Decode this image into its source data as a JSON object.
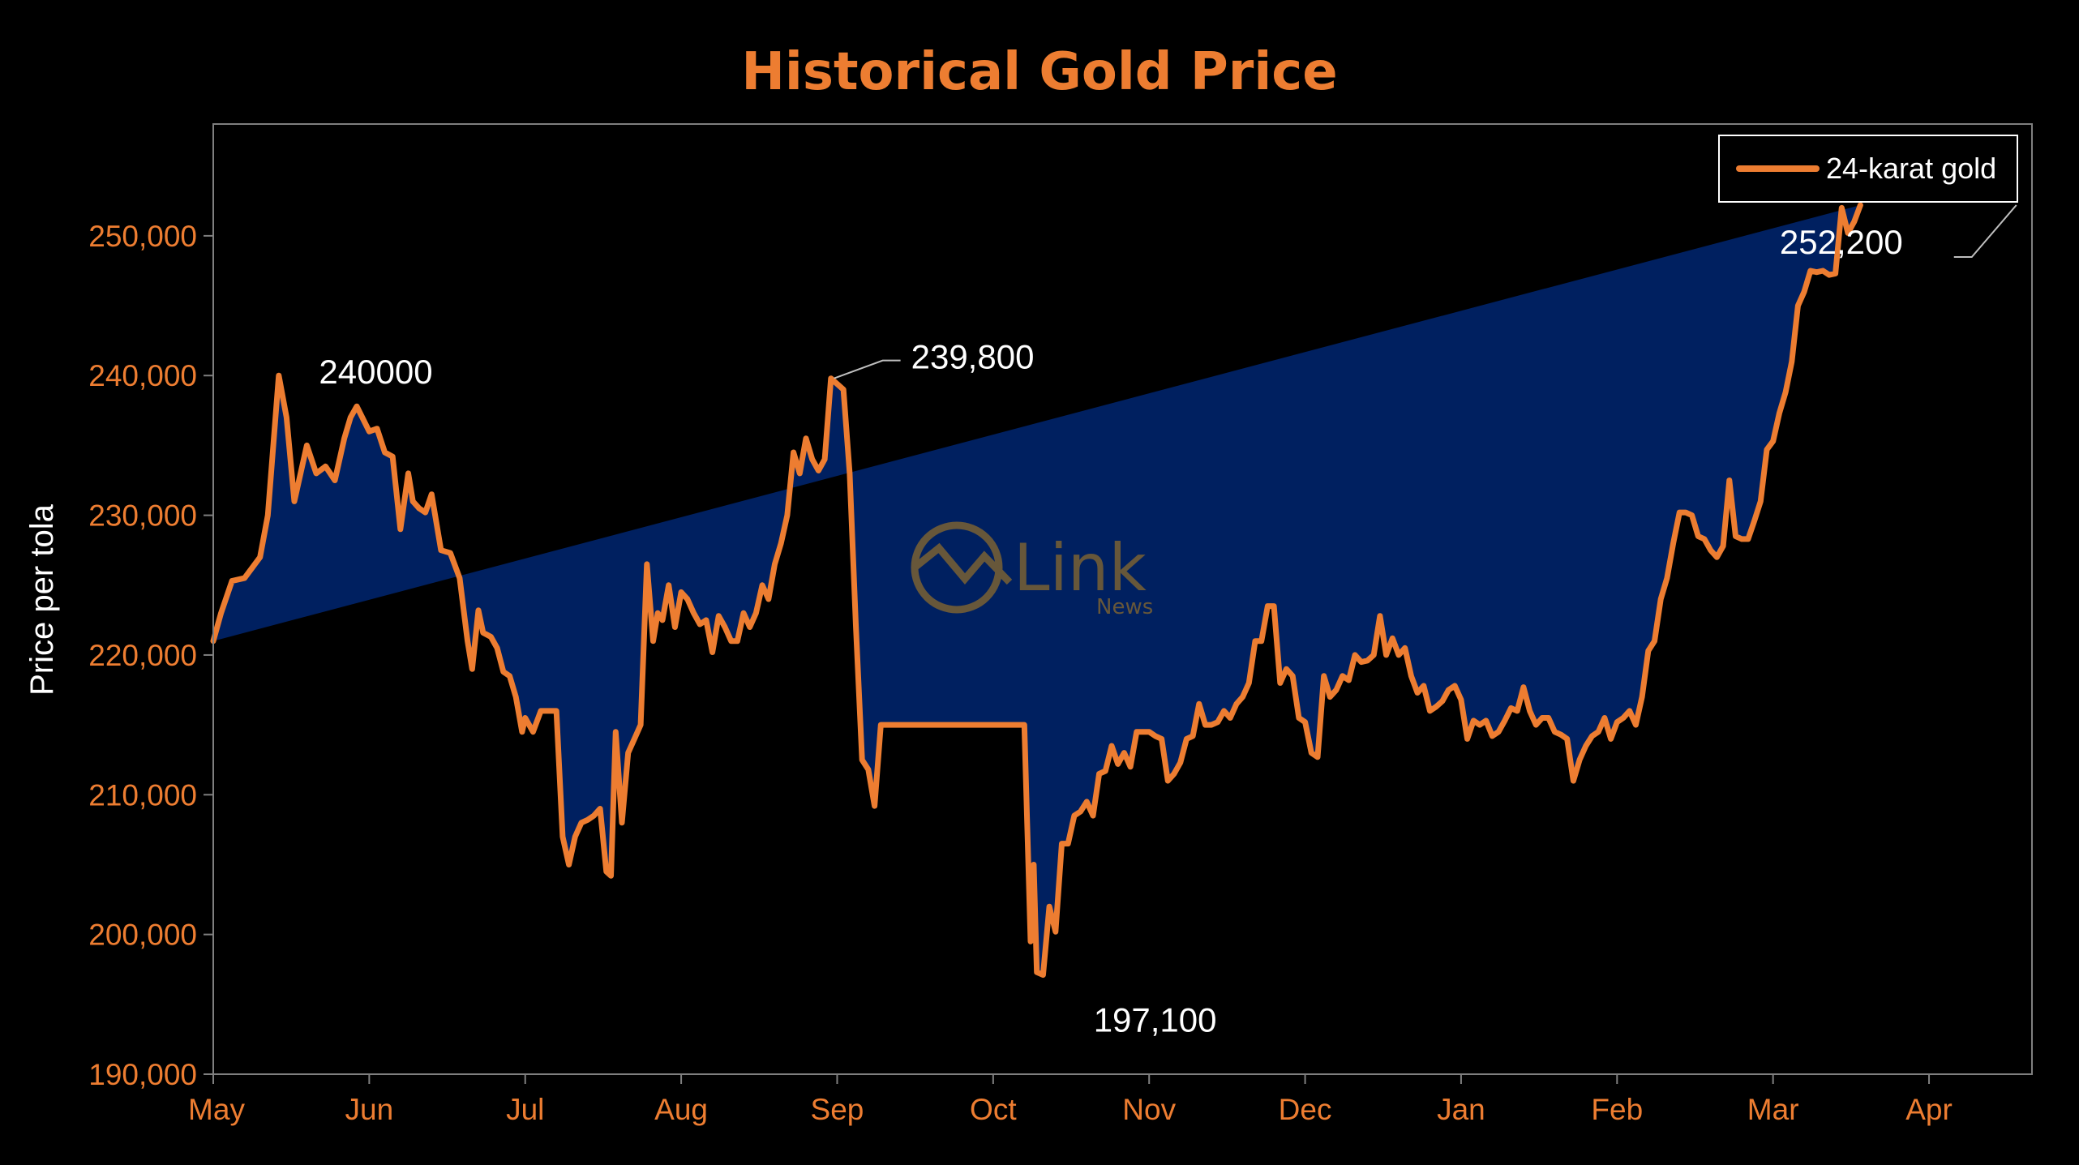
{
  "chart_data": {
    "type": "area",
    "title": "Historical Gold Price",
    "xlabel": "",
    "ylabel": "Price per tola",
    "ylim": [
      190000,
      258000
    ],
    "yticks": [
      "190,000",
      "200,000",
      "210,000",
      "220,000",
      "230,000",
      "240,000",
      "250,000"
    ],
    "ytick_values": [
      190000,
      200000,
      210000,
      220000,
      230000,
      240000,
      250000
    ],
    "months": [
      "May",
      "Jun",
      "Jul",
      "Aug",
      "Sep",
      "Oct",
      "Nov",
      "Dec",
      "Jan",
      "Feb",
      "Mar",
      "Apr"
    ],
    "legend_position": "top-right",
    "grid": false,
    "series": [
      {
        "name": "24-karat gold",
        "line_color": "#ED7D31",
        "fill_color": "#002060",
        "month_index": [
          0,
          0.05,
          0.12,
          0.2,
          0.3,
          0.35,
          0.42,
          0.47,
          0.52,
          0.56,
          0.6,
          0.66,
          0.72,
          0.78,
          0.84,
          0.88,
          0.92,
          1.0,
          1.05,
          1.1,
          1.15,
          1.2,
          1.25,
          1.28,
          1.32,
          1.36,
          1.4,
          1.46,
          1.52,
          1.58,
          1.63,
          1.66,
          1.7,
          1.73,
          1.78,
          1.82,
          1.86,
          1.9,
          1.94,
          1.98,
          2.0,
          2.05,
          2.1,
          2.15,
          2.2,
          2.24,
          2.28,
          2.32,
          2.36,
          2.4,
          2.44,
          2.48,
          2.52,
          2.55,
          2.58,
          2.62,
          2.66,
          2.7,
          2.74,
          2.78,
          2.82,
          2.85,
          2.88,
          2.92,
          2.96,
          3.0,
          3.04,
          3.08,
          3.12,
          3.16,
          3.2,
          3.24,
          3.28,
          3.32,
          3.36,
          3.4,
          3.44,
          3.48,
          3.52,
          3.56,
          3.6,
          3.64,
          3.68,
          3.72,
          3.76,
          3.8,
          3.84,
          3.88,
          3.92,
          3.96,
          4.0,
          4.04,
          4.08,
          4.12,
          4.16,
          4.2,
          4.24,
          4.28,
          4.32,
          4.36,
          4.42,
          4.48,
          5.0,
          5.2,
          5.24,
          5.26,
          5.28,
          5.32,
          5.36,
          5.4,
          5.44,
          5.48,
          5.52,
          5.56,
          5.6,
          5.64,
          5.68,
          5.72,
          5.76,
          5.8,
          5.84,
          5.88,
          5.92,
          5.96,
          6.0,
          6.04,
          6.08,
          6.12,
          6.16,
          6.2,
          6.24,
          6.28,
          6.32,
          6.36,
          6.4,
          6.44,
          6.48,
          6.52,
          6.56,
          6.6,
          6.64,
          6.68,
          6.72,
          6.76,
          6.8,
          6.84,
          6.88,
          6.92,
          6.96,
          7.0,
          7.04,
          7.08,
          7.12,
          7.16,
          7.2,
          7.24,
          7.28,
          7.32,
          7.36,
          7.4,
          7.44,
          7.48,
          7.52,
          7.56,
          7.6,
          7.64,
          7.68,
          7.72,
          7.76,
          7.8,
          7.84,
          7.88,
          7.92,
          7.96,
          8.0,
          8.04,
          8.08,
          8.12,
          8.16,
          8.2,
          8.24,
          8.28,
          8.32,
          8.36,
          8.4,
          8.44,
          8.48,
          8.52,
          8.56,
          8.6,
          8.64,
          8.68,
          8.72,
          8.76,
          8.8,
          8.84,
          8.88,
          8.92,
          8.96,
          9.0,
          9.04,
          9.08,
          9.12,
          9.16,
          9.2,
          9.24,
          9.28,
          9.32,
          9.36,
          9.4,
          9.44,
          9.48,
          9.52,
          9.56,
          9.6,
          9.64,
          9.68,
          9.72,
          9.76,
          9.8,
          9.84,
          9.88,
          9.92,
          9.96,
          10.0,
          10.04,
          10.08,
          10.12,
          10.16,
          10.2,
          10.24,
          10.28,
          10.32,
          10.36,
          10.4,
          10.44,
          10.48,
          10.52,
          10.56,
          10.6,
          10.64,
          10.68,
          10.72,
          10.76,
          10.8,
          10.84,
          10.88,
          10.92,
          10.96,
          11.0,
          11.04,
          11.08,
          11.12,
          11.16,
          11.2,
          11.24,
          11.28,
          11.32,
          11.36,
          11.4,
          11.44,
          11.48,
          11.52,
          11.56
        ],
        "values": [
          221000,
          223000,
          225300,
          225500,
          227000,
          230000,
          240000,
          237000,
          231000,
          233000,
          235000,
          233000,
          233500,
          232500,
          235500,
          237000,
          237800,
          236000,
          236200,
          234500,
          234200,
          229000,
          233000,
          231000,
          230500,
          230200,
          231500,
          227500,
          227300,
          225500,
          221000,
          219000,
          223200,
          221600,
          221300,
          220500,
          218800,
          218500,
          217000,
          214500,
          215500,
          214500,
          216000,
          216000,
          216000,
          207000,
          205000,
          207000,
          208000,
          208200,
          208500,
          209000,
          204500,
          204200,
          214500,
          208000,
          213000,
          214000,
          215000,
          226500,
          221000,
          223000,
          222500,
          225000,
          222000,
          224500,
          224000,
          223000,
          222200,
          222500,
          220200,
          222800,
          222000,
          221000,
          221000,
          223000,
          222000,
          223000,
          225000,
          224000,
          226500,
          228000,
          230000,
          234500,
          233000,
          235500,
          234000,
          233200,
          234000,
          239800,
          239400,
          239000,
          233000,
          222000,
          212500,
          211800,
          209200,
          215000,
          215000,
          215000,
          215000,
          215000,
          215000,
          215000,
          199500,
          205000,
          197300,
          197100,
          202000,
          200200,
          206500,
          206500,
          208500,
          208800,
          209500,
          208500,
          211500,
          211700,
          213500,
          212200,
          213000,
          212000,
          214500,
          214500,
          214500,
          214200,
          214000,
          211000,
          211500,
          212300,
          214000,
          214200,
          216500,
          215000,
          215000,
          215200,
          216000,
          215500,
          216500,
          217000,
          218000,
          221000,
          221000,
          223500,
          223500,
          218000,
          219000,
          218500,
          215500,
          215200,
          213000,
          212700,
          218500,
          217000,
          217500,
          218500,
          218200,
          220000,
          219500,
          219600,
          220000,
          222800,
          220000,
          221200,
          220000,
          220500,
          218500,
          217300,
          217800,
          216000,
          216300,
          216700,
          217500,
          217800,
          216800,
          214000,
          215300,
          215000,
          215300,
          214200,
          214500,
          215300,
          216200,
          216000,
          217700,
          216000,
          215000,
          215500,
          215500,
          214500,
          214300,
          214000,
          211000,
          212500,
          213500,
          214200,
          214500,
          215500,
          214000,
          215200,
          215500,
          216000,
          215000,
          217000,
          220300,
          221000,
          224000,
          225500,
          228000,
          230200,
          230200,
          230000,
          228500,
          228300,
          227500,
          227000,
          227800,
          232500,
          228500,
          228300,
          228300,
          229600,
          231000,
          234700,
          235300,
          237300,
          238800,
          241000,
          245000,
          246000,
          247500,
          247400,
          247500,
          247200,
          247300,
          252000,
          250200,
          251000,
          252200
        ]
      }
    ],
    "annotations": [
      {
        "text": "240000",
        "month_index": 0.47,
        "value": 240000
      },
      {
        "text": "239,800",
        "month_index": 3.98,
        "value": 239800
      },
      {
        "text": "197,100",
        "month_index": 5.28,
        "value": 197100
      },
      {
        "text": "252,200",
        "month_index": 11.56,
        "value": 252200
      }
    ]
  }
}
